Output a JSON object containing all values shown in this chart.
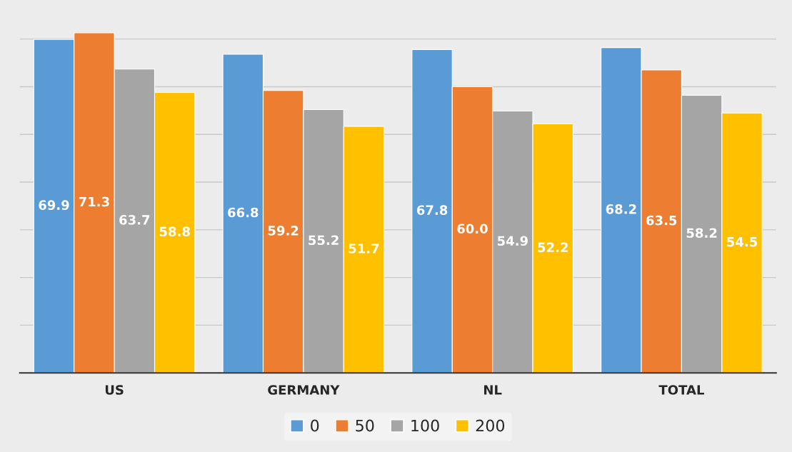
{
  "chart_data": {
    "type": "bar",
    "categories": [
      "US",
      "GERMANY",
      "NL",
      "TOTAL"
    ],
    "series": [
      {
        "name": "0",
        "color": "#5b9bd5",
        "values": [
          69.9,
          66.8,
          67.8,
          68.2
        ],
        "value_labels": [
          "69.9",
          "66.8",
          "67.8",
          "68.2"
        ]
      },
      {
        "name": "50",
        "color": "#ed7d31",
        "values": [
          71.3,
          59.2,
          60.0,
          63.5
        ],
        "value_labels": [
          "71.3",
          "59.2",
          "60.0",
          "63.5"
        ]
      },
      {
        "name": "100",
        "color": "#a5a5a5",
        "values": [
          63.7,
          55.2,
          54.9,
          58.2
        ],
        "value_labels": [
          "63.7",
          "55.2",
          "54.9",
          "58.2"
        ]
      },
      {
        "name": "200",
        "color": "#ffc000",
        "values": [
          58.8,
          51.7,
          52.2,
          54.5
        ],
        "value_labels": [
          "58.8",
          "51.7",
          "52.2",
          "54.5"
        ]
      }
    ],
    "grid": "y",
    "legend": "bottom",
    "tick_labels": "x"
  }
}
